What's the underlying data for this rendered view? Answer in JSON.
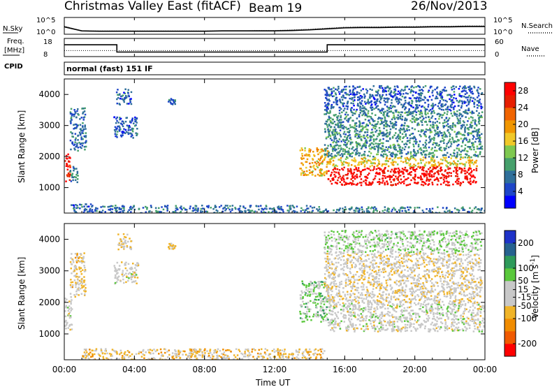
{
  "title": {
    "station": "Christmas Valley East (fitACF)",
    "beam": "Beam 19",
    "date": "26/Nov/2013"
  },
  "top_panel": {
    "left_label": "N.Sky",
    "right_label": "N.Search",
    "left_ticks": [
      "10^5",
      "10^0"
    ],
    "right_ticks": [
      "10^5",
      "10^0"
    ]
  },
  "freq_panel": {
    "left_label_1": "Freq.",
    "left_label_2": "[MHz]",
    "right_label": "Nave",
    "left_ticks": [
      "18",
      "8"
    ],
    "right_ticks": [
      "60",
      "0"
    ]
  },
  "cpid": {
    "label": "CPID",
    "value": "normal (fast) 151 IF"
  },
  "colors": {
    "power_scale": [
      "#0000ff",
      "#1e46c8",
      "#2f6f9a",
      "#46a06c",
      "#7ec850",
      "#f0c828",
      "#f09600",
      "#f06400",
      "#e61e00",
      "#ff0000"
    ],
    "velocity_scale": [
      "#ff0000",
      "#f05a00",
      "#f08c00",
      "#f0b428",
      "#c8c8c8",
      "#c8c8c8",
      "#5ac83c",
      "#2e9a5a",
      "#26628f",
      "#1e32c8"
    ]
  },
  "chart_data": [
    {
      "type": "line",
      "panel": "noise",
      "title": "",
      "x": [
        0,
        1,
        2,
        3,
        4,
        5,
        6,
        7,
        8,
        9,
        10,
        11,
        12,
        13,
        14,
        15,
        16,
        17,
        18,
        19,
        20,
        21,
        22,
        23,
        24
      ],
      "series": [
        {
          "values": [
            2.2,
            1.0,
            0.9,
            0.9,
            0.9,
            0.9,
            0.9,
            0.9,
            0.9,
            1.0,
            1.0,
            1.0,
            1.0,
            1.1,
            1.3,
            1.6,
            1.9,
            2.0,
            2.0,
            2.1,
            2.1,
            2.2,
            2.2,
            2.3,
            2.3
          ]
        },
        {
          "values": [
            2.4,
            1.0,
            1.0,
            1.0,
            1.0,
            1.0,
            1.0,
            1.0,
            1.0,
            1.0,
            1.0,
            1.1,
            1.1,
            1.3,
            1.5,
            1.8,
            2.1,
            2.2,
            2.2,
            2.3,
            2.3,
            2.4,
            2.4,
            2.5,
            2.5
          ]
        }
      ],
      "ylim": [
        0,
        5
      ]
    },
    {
      "type": "line",
      "panel": "frequency",
      "title": "",
      "x": [
        0,
        3,
        3,
        15,
        15,
        24
      ],
      "series": [
        {
          "values": [
            14.5,
            14.5,
            10.5,
            10.5,
            14.5,
            14.5
          ]
        },
        {
          "values": [
            20,
            20,
            20,
            20,
            20,
            20
          ]
        }
      ],
      "ylim": [
        8,
        18
      ]
    },
    {
      "type": "heatmap",
      "panel": "power",
      "title": "",
      "xlabel": "",
      "ylabel": "Slant Range [km]",
      "xlim": [
        0,
        24
      ],
      "ylim": [
        180,
        4500
      ],
      "yticks": [
        1000,
        2000,
        3000,
        4000
      ],
      "colorbar": {
        "label": "Power [dB]",
        "ticks": [
          4,
          8,
          12,
          16,
          20,
          24,
          28
        ],
        "range": [
          0,
          30
        ]
      },
      "regions": [
        {
          "x": [
            0,
            0.3
          ],
          "y": [
            1100,
            2200
          ],
          "value": 27
        },
        {
          "x": [
            0.3,
            0.8
          ],
          "y": [
            1200,
            1700
          ],
          "value": 8
        },
        {
          "x": [
            0.2,
            1.5
          ],
          "y": [
            200,
            500
          ],
          "value": 6
        },
        {
          "x": [
            0.3,
            1.2
          ],
          "y": [
            2200,
            3600
          ],
          "value": 7
        },
        {
          "x": [
            2.8,
            4.2
          ],
          "y": [
            2600,
            3300
          ],
          "value": 6
        },
        {
          "x": [
            2.9,
            3.8
          ],
          "y": [
            3700,
            4200
          ],
          "value": 6
        },
        {
          "x": [
            5.9,
            6.3
          ],
          "y": [
            3700,
            3900
          ],
          "value": 7
        },
        {
          "x": [
            1.5,
            14.5
          ],
          "y": [
            180,
            450
          ],
          "value": 7
        },
        {
          "x": [
            13.4,
            15.0
          ],
          "y": [
            1400,
            2300
          ],
          "value": 18
        },
        {
          "x": [
            15.0,
            23.5
          ],
          "y": [
            1100,
            1700
          ],
          "value": 28
        },
        {
          "x": [
            15.0,
            23.5
          ],
          "y": [
            1700,
            2000
          ],
          "value": 17
        },
        {
          "x": [
            14.8,
            23.8
          ],
          "y": [
            2000,
            3500
          ],
          "value": 9
        },
        {
          "x": [
            14.8,
            23.8
          ],
          "y": [
            3500,
            4300
          ],
          "value": 6
        },
        {
          "x": [
            14.5,
            24.0
          ],
          "y": [
            180,
            400
          ],
          "value": 8
        }
      ]
    },
    {
      "type": "heatmap",
      "panel": "velocity",
      "title": "",
      "xlabel": "Time UT",
      "ylabel": "Slant Range [km]",
      "xlim": [
        0,
        24
      ],
      "ylim": [
        180,
        4500
      ],
      "xticks": [
        "00:00",
        "04:00",
        "08:00",
        "12:00",
        "16:00",
        "20:00",
        "00:00"
      ],
      "yticks": [
        1000,
        2000,
        3000,
        4000
      ],
      "colorbar": {
        "label": "Velocity [m s^-1]",
        "ticks": [
          200,
          100,
          50,
          15,
          -15,
          -50,
          -100,
          -200
        ],
        "range": [
          -250,
          250
        ]
      },
      "regions": [
        {
          "x": [
            0,
            0.4
          ],
          "y": [
            1100,
            2200
          ],
          "value": 0
        },
        {
          "x": [
            0.3,
            1.2
          ],
          "y": [
            2200,
            3600
          ],
          "value": -40
        },
        {
          "x": [
            2.8,
            4.2
          ],
          "y": [
            2600,
            3300
          ],
          "value": 0
        },
        {
          "x": [
            2.9,
            3.8
          ],
          "y": [
            3700,
            4200
          ],
          "value": -30
        },
        {
          "x": [
            5.9,
            6.3
          ],
          "y": [
            3700,
            3900
          ],
          "value": -40
        },
        {
          "x": [
            1.0,
            14.8
          ],
          "y": [
            180,
            550
          ],
          "value": -60
        },
        {
          "x": [
            13.4,
            15.0
          ],
          "y": [
            1400,
            2700
          ],
          "value": 60
        },
        {
          "x": [
            15.0,
            24.0
          ],
          "y": [
            1100,
            2000
          ],
          "value": 0
        },
        {
          "x": [
            14.8,
            23.8
          ],
          "y": [
            2000,
            3600
          ],
          "value": -20
        },
        {
          "x": [
            14.8,
            23.8
          ],
          "y": [
            3600,
            4300
          ],
          "value": 40
        }
      ]
    }
  ]
}
